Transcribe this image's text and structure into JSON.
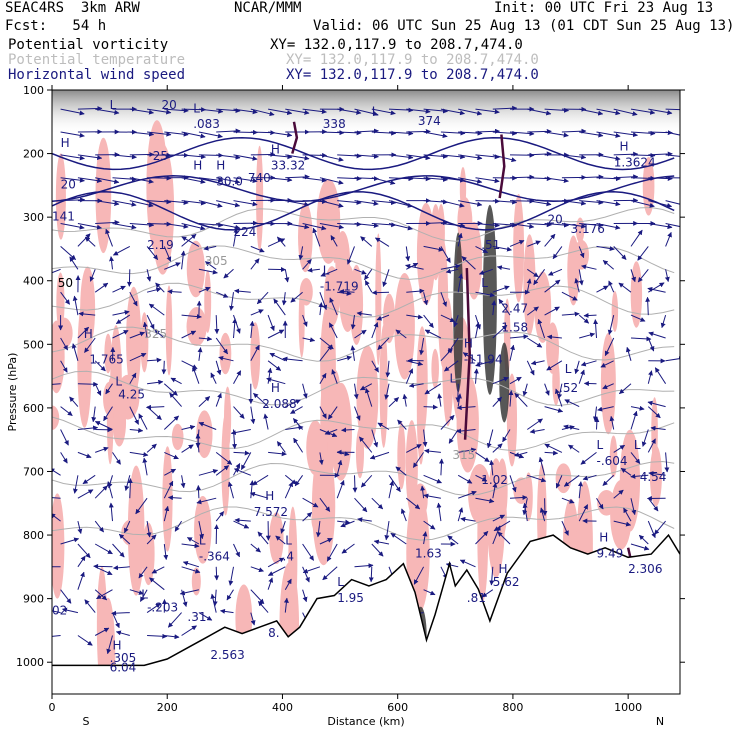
{
  "header": {
    "model": "SEAC4RS  3km ARW",
    "org": "NCAR/MMM",
    "init": "Init: 00 UTC Fri 23 Aug 13",
    "fcst": "Fcst:   54 h",
    "valid": "Valid: 06 UTC Sun 25 Aug 13 (01 CDT Sun 25 Aug 13)",
    "fields": [
      {
        "name": "Potential vorticity",
        "xy": "XY= 132.0,117.9 to 208.7,474.0",
        "color": "#000000"
      },
      {
        "name": "Potential temperature",
        "xy": "XY= 132.0,117.9 to 208.7,474.0",
        "color": "#bdbdbd"
      },
      {
        "name": "Horizontal wind speed",
        "xy": "XY= 132.0,117.9 to 208.7,474.0",
        "color": "#1a1a80"
      }
    ]
  },
  "chart_data": {
    "type": "cross-section",
    "xlabel": "Distance (km)",
    "ylabel": "Pressure (hPa)",
    "xlim": [
      0,
      1090
    ],
    "ylim": [
      1050,
      100
    ],
    "x_ticks": [
      0,
      200,
      400,
      600,
      800,
      1000
    ],
    "y_ticks": [
      100,
      200,
      300,
      400,
      500,
      600,
      700,
      800,
      900,
      1000
    ],
    "x_end_labels": {
      "left": "S",
      "right": "N"
    },
    "terrain_pressure": [
      [
        0,
        1005
      ],
      [
        160,
        1005
      ],
      [
        200,
        995
      ],
      [
        240,
        975
      ],
      [
        270,
        960
      ],
      [
        300,
        945
      ],
      [
        330,
        955
      ],
      [
        360,
        945
      ],
      [
        390,
        935
      ],
      [
        410,
        960
      ],
      [
        430,
        945
      ],
      [
        460,
        900
      ],
      [
        490,
        895
      ],
      [
        520,
        870
      ],
      [
        550,
        880
      ],
      [
        580,
        870
      ],
      [
        610,
        845
      ],
      [
        630,
        890
      ],
      [
        650,
        965
      ],
      [
        665,
        925
      ],
      [
        690,
        845
      ],
      [
        700,
        880
      ],
      [
        720,
        855
      ],
      [
        740,
        885
      ],
      [
        760,
        935
      ],
      [
        790,
        860
      ],
      [
        830,
        810
      ],
      [
        870,
        800
      ],
      [
        900,
        820
      ],
      [
        930,
        830
      ],
      [
        960,
        820
      ],
      [
        1000,
        835
      ],
      [
        1040,
        830
      ],
      [
        1070,
        800
      ],
      [
        1090,
        830
      ]
    ],
    "annotations": [
      {
        "text": "H",
        "x": 15,
        "p": 190,
        "color": "#1a1a80"
      },
      {
        "text": "20",
        "x": 15,
        "p": 255,
        "color": "#1a1a80"
      },
      {
        "text": "141",
        "x": 0,
        "p": 305,
        "color": "#1a1a80"
      },
      {
        "text": "50",
        "x": 10,
        "p": 410,
        "color": "#000000"
      },
      {
        "text": "H",
        "x": 55,
        "p": 490,
        "color": "#1a1a80"
      },
      {
        "text": "1.765",
        "x": 65,
        "p": 530,
        "color": "#1a1a80"
      },
      {
        "text": "L",
        "x": 110,
        "p": 565,
        "color": "#1a1a80"
      },
      {
        "text": "4.25",
        "x": 115,
        "p": 585,
        "color": "#1a1a80"
      },
      {
        "text": "325",
        "x": 160,
        "p": 490,
        "color": "#999999"
      },
      {
        "text": "25",
        "x": 175,
        "p": 210,
        "color": "#1a1a80"
      },
      {
        "text": "20",
        "x": 190,
        "p": 130,
        "color": "#1a1a80"
      },
      {
        "text": "L",
        "x": 245,
        "p": 135,
        "color": "#1a1a80"
      },
      {
        "text": ".083",
        "x": 245,
        "p": 160,
        "color": "#1a1a80"
      },
      {
        "text": "H",
        "x": 285,
        "p": 225,
        "color": "#1a1a80"
      },
      {
        "text": "30.0",
        "x": 285,
        "p": 250,
        "color": "#1a1a80"
      },
      {
        "text": "740",
        "x": 340,
        "p": 245,
        "color": "#1a1a80"
      },
      {
        "text": "H",
        "x": 245,
        "p": 225,
        "color": "#1a1a80"
      },
      {
        "text": "2.19",
        "x": 165,
        "p": 350,
        "color": "#1a1a80"
      },
      {
        "text": "305",
        "x": 265,
        "p": 375,
        "color": "#999999"
      },
      {
        "text": "224",
        "x": 315,
        "p": 330,
        "color": "#1a1a80"
      },
      {
        "text": "L",
        "x": 470,
        "p": 390,
        "color": "#1a1a80"
      },
      {
        "text": "-1.719",
        "x": 465,
        "p": 415,
        "color": "#1a1a80"
      },
      {
        "text": "H",
        "x": 380,
        "p": 200,
        "color": "#1a1a80"
      },
      {
        "text": "33.32",
        "x": 380,
        "p": 225,
        "color": "#1a1a80"
      },
      {
        "text": "338",
        "x": 470,
        "p": 160,
        "color": "#1a1a80"
      },
      {
        "text": "374",
        "x": 635,
        "p": 155,
        "color": "#1a1a80"
      },
      {
        "text": "H",
        "x": 380,
        "p": 575,
        "color": "#1a1a80"
      },
      {
        "text": "2.088",
        "x": 365,
        "p": 600,
        "color": "#1a1a80"
      },
      {
        "text": "H",
        "x": 370,
        "p": 745,
        "color": "#1a1a80"
      },
      {
        "text": "7.572",
        "x": 350,
        "p": 770,
        "color": "#1a1a80"
      },
      {
        "text": "L",
        "x": 255,
        "p": 815,
        "color": "#1a1a80"
      },
      {
        "text": "-.364",
        "x": 255,
        "p": 840,
        "color": "#1a1a80"
      },
      {
        "text": "L",
        "x": 405,
        "p": 815,
        "color": "#1a1a80"
      },
      {
        "text": ".4",
        "x": 400,
        "p": 840,
        "color": "#1a1a80"
      },
      {
        "text": "L",
        "x": 155,
        "p": 900,
        "color": "#1a1a80"
      },
      {
        "text": "-.203",
        "x": 165,
        "p": 920,
        "color": "#1a1a80"
      },
      {
        "text": ".31",
        "x": 235,
        "p": 935,
        "color": "#1a1a80"
      },
      {
        "text": "H",
        "x": 105,
        "p": 980,
        "color": "#1a1a80"
      },
      {
        "text": ".305",
        "x": 100,
        "p": 1000,
        "color": "#1a1a80"
      },
      {
        "text": "6.04",
        "x": 100,
        "p": 1015,
        "color": "#1a1a80"
      },
      {
        "text": "2.563",
        "x": 275,
        "p": 995,
        "color": "#1a1a80"
      },
      {
        "text": "8.",
        "x": 375,
        "p": 960,
        "color": "#1a1a80"
      },
      {
        "text": "L",
        "x": 495,
        "p": 880,
        "color": "#1a1a80"
      },
      {
        "text": "1.95",
        "x": 495,
        "p": 905,
        "color": "#1a1a80"
      },
      {
        "text": "1.63",
        "x": 630,
        "p": 835,
        "color": "#1a1a80"
      },
      {
        "text": "L",
        "x": 690,
        "p": 560,
        "color": "#1a1a80"
      },
      {
        "text": "H",
        "x": 715,
        "p": 505,
        "color": "#1a1a80"
      },
      {
        "text": "-11.94",
        "x": 715,
        "p": 530,
        "color": "#1a1a80"
      },
      {
        "text": "2.47",
        "x": 780,
        "p": 450,
        "color": "#1a1a80"
      },
      {
        "text": "1.58",
        "x": 780,
        "p": 480,
        "color": "#1a1a80"
      },
      {
        "text": ".51",
        "x": 745,
        "p": 350,
        "color": "#1a1a80"
      },
      {
        "text": "L",
        "x": 745,
        "p": 410,
        "color": "#1a1a80"
      },
      {
        "text": "1.02",
        "x": 745,
        "p": 720,
        "color": "#1a1a80"
      },
      {
        "text": "315",
        "x": 695,
        "p": 680,
        "color": "#999999"
      },
      {
        "text": "H",
        "x": 775,
        "p": 860,
        "color": "#1a1a80"
      },
      {
        "text": "5.62",
        "x": 765,
        "p": 880,
        "color": "#1a1a80"
      },
      {
        "text": ".81",
        "x": 720,
        "p": 905,
        "color": "#1a1a80"
      },
      {
        "text": "L",
        "x": 890,
        "p": 545,
        "color": "#1a1a80"
      },
      {
        "text": ".52",
        "x": 880,
        "p": 575,
        "color": "#1a1a80"
      },
      {
        "text": "3.176",
        "x": 900,
        "p": 325,
        "color": "#1a1a80"
      },
      {
        "text": "20",
        "x": 860,
        "p": 310,
        "color": "#1a1a80"
      },
      {
        "text": "L",
        "x": 945,
        "p": 665,
        "color": "#1a1a80"
      },
      {
        "text": "-.604",
        "x": 945,
        "p": 690,
        "color": "#1a1a80"
      },
      {
        "text": "L",
        "x": 1010,
        "p": 665,
        "color": "#1a1a80"
      },
      {
        "text": "4.54",
        "x": 1020,
        "p": 715,
        "color": "#1a1a80"
      },
      {
        "text": "H",
        "x": 950,
        "p": 810,
        "color": "#1a1a80"
      },
      {
        "text": "9.49",
        "x": 945,
        "p": 835,
        "color": "#1a1a80"
      },
      {
        "text": "2.306",
        "x": 1000,
        "p": 860,
        "color": "#1a1a80"
      },
      {
        "text": "H",
        "x": 985,
        "p": 195,
        "color": "#1a1a80"
      },
      {
        "text": "1.3624",
        "x": 975,
        "p": 220,
        "color": "#1a1a80"
      },
      {
        "text": "L",
        "x": 555,
        "p": 140,
        "color": "#1a1a80"
      },
      {
        "text": "L",
        "x": 100,
        "p": 130,
        "color": "#1a1a80"
      },
      {
        "text": "02",
        "x": 0,
        "p": 925,
        "color": "#1a1a80"
      }
    ],
    "colors": {
      "pv_shade": "#f7b7b7",
      "pv_contour": "#4a0a3a",
      "wind": "#1a1a80",
      "theta": "#b0b0b0",
      "terrain": "#000000"
    }
  }
}
